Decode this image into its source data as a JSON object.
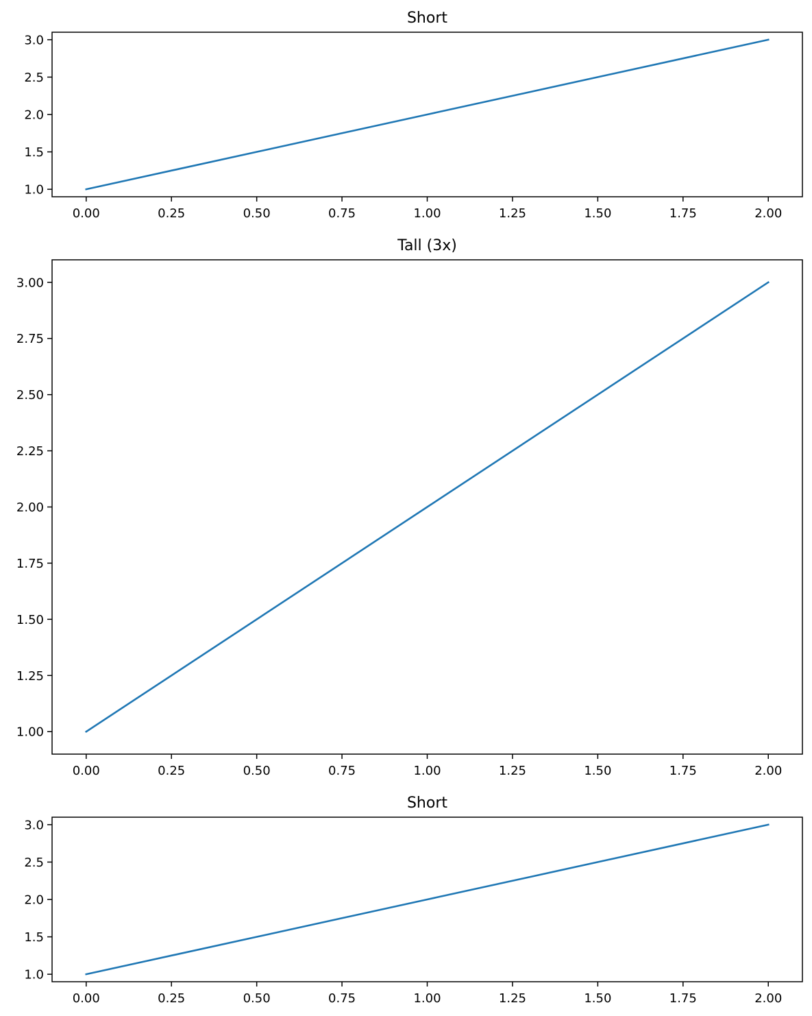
{
  "chart_data": [
    {
      "type": "line",
      "title": "Short",
      "x": [
        0,
        1,
        2
      ],
      "series": [
        {
          "values": [
            1,
            2,
            3
          ],
          "color": "#1f77b4"
        }
      ],
      "xlim": [
        -0.1,
        2.1
      ],
      "ylim": [
        0.9,
        3.1
      ],
      "xticks": [
        0,
        0.25,
        0.5,
        0.75,
        1,
        1.25,
        1.5,
        1.75,
        2
      ],
      "xtick_labels": [
        "0.00",
        "0.25",
        "0.50",
        "0.75",
        "1.00",
        "1.25",
        "1.50",
        "1.75",
        "2.00"
      ],
      "yticks": [
        1,
        1.5,
        2,
        2.5,
        3
      ],
      "ytick_labels": [
        "1.0",
        "1.5",
        "2.0",
        "2.5",
        "3.0"
      ],
      "grid": false
    },
    {
      "type": "line",
      "title": "Tall (3x)",
      "x": [
        0,
        1,
        2
      ],
      "series": [
        {
          "values": [
            1,
            2,
            3
          ],
          "color": "#1f77b4"
        }
      ],
      "xlim": [
        -0.1,
        2.1
      ],
      "ylim": [
        0.9,
        3.1
      ],
      "xticks": [
        0,
        0.25,
        0.5,
        0.75,
        1,
        1.25,
        1.5,
        1.75,
        2
      ],
      "xtick_labels": [
        "0.00",
        "0.25",
        "0.50",
        "0.75",
        "1.00",
        "1.25",
        "1.50",
        "1.75",
        "2.00"
      ],
      "yticks": [
        1,
        1.25,
        1.5,
        1.75,
        2,
        2.25,
        2.5,
        2.75,
        3
      ],
      "ytick_labels": [
        "1.00",
        "1.25",
        "1.50",
        "1.75",
        "2.00",
        "2.25",
        "2.50",
        "2.75",
        "3.00"
      ],
      "grid": false
    },
    {
      "type": "line",
      "title": "Short",
      "x": [
        0,
        1,
        2
      ],
      "series": [
        {
          "values": [
            1,
            2,
            3
          ],
          "color": "#1f77b4"
        }
      ],
      "xlim": [
        -0.1,
        2.1
      ],
      "ylim": [
        0.9,
        3.1
      ],
      "xticks": [
        0,
        0.25,
        0.5,
        0.75,
        1,
        1.25,
        1.5,
        1.75,
        2
      ],
      "xtick_labels": [
        "0.00",
        "0.25",
        "0.50",
        "0.75",
        "1.00",
        "1.25",
        "1.50",
        "1.75",
        "2.00"
      ],
      "yticks": [
        1,
        1.5,
        2,
        2.5,
        3
      ],
      "ytick_labels": [
        "1.0",
        "1.5",
        "2.0",
        "2.5",
        "3.0"
      ],
      "grid": false
    }
  ]
}
